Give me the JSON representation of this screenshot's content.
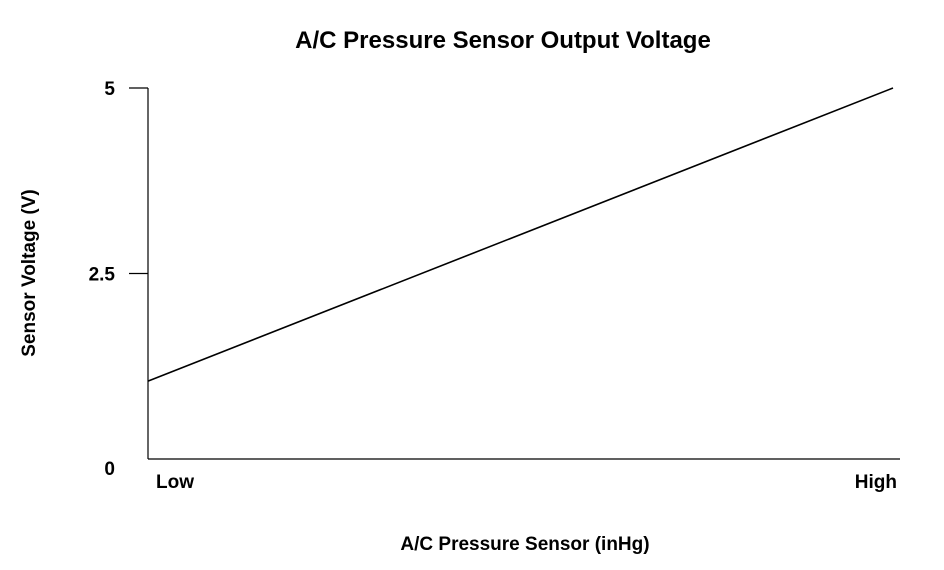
{
  "chart_data": {
    "type": "line",
    "title": "A/C Pressure Sensor Output Voltage",
    "xlabel": "A/C Pressure Sensor (inHg)",
    "ylabel": "Sensor Voltage (V)",
    "x_tick_labels": [
      "Low",
      "High"
    ],
    "y_ticks": [
      0,
      2.5,
      5
    ],
    "y_tick_labels": [
      "0",
      "2.5",
      "5"
    ],
    "xlim": [
      0,
      1
    ],
    "ylim": [
      0,
      5
    ],
    "grid": false,
    "series": [
      {
        "x": [
          0,
          1
        ],
        "y": [
          1.05,
          5
        ],
        "color": "#000000"
      }
    ]
  }
}
